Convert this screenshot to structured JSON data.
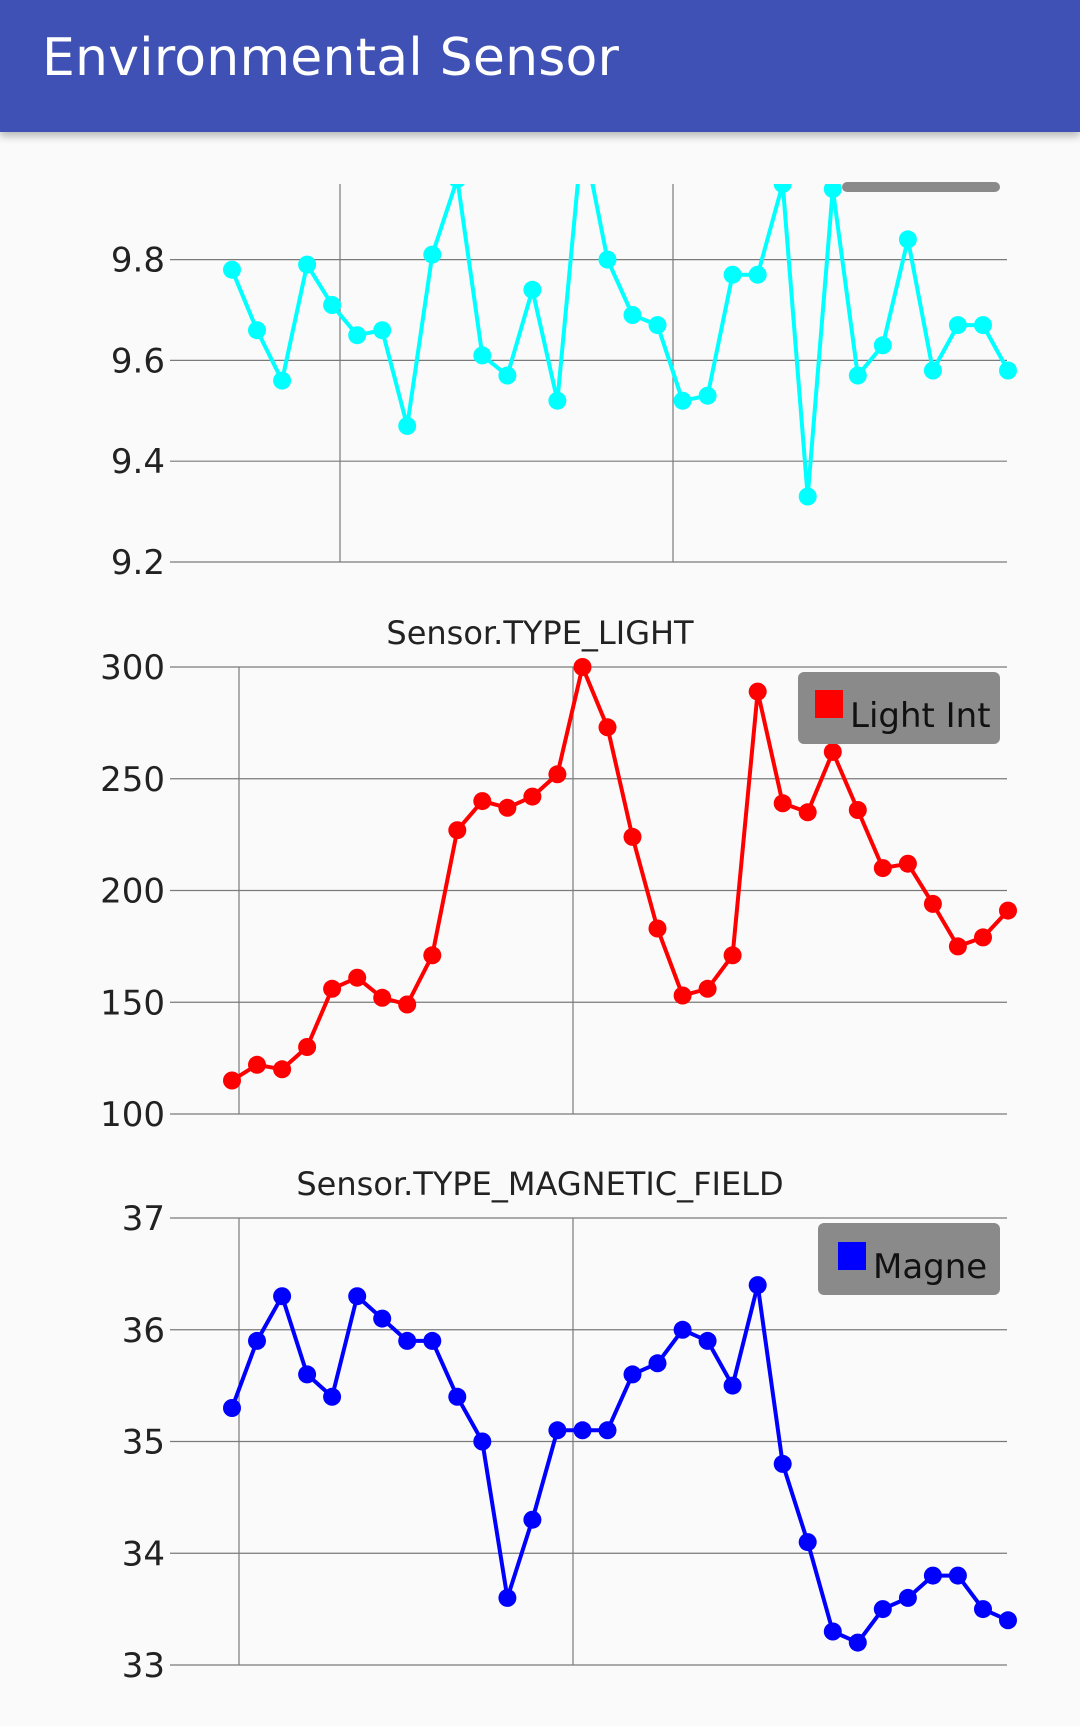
{
  "app": {
    "title": "Environmental Sensor"
  },
  "chart_data": [
    {
      "type": "line",
      "title": "",
      "ylim": [
        9.2,
        9.95
      ],
      "yticks": [
        "9.2",
        "9.4",
        "9.6",
        "9.8"
      ],
      "color": "#00ffff",
      "legend_visible": false,
      "series": [
        {
          "values": [
            9.78,
            9.66,
            9.56,
            9.79,
            9.71,
            9.65,
            9.66,
            9.47,
            9.81,
            9.96,
            9.61,
            9.57,
            9.74,
            9.52,
            10.05,
            9.8,
            9.69,
            9.67,
            9.52,
            9.53,
            9.77,
            9.77,
            9.95,
            9.33,
            9.94,
            9.57,
            9.63,
            9.84,
            9.58,
            9.67,
            9.67,
            9.58
          ]
        }
      ]
    },
    {
      "type": "line",
      "title": "Sensor.TYPE_LIGHT",
      "ylim": [
        100,
        300
      ],
      "yticks": [
        "100",
        "150",
        "200",
        "250",
        "300"
      ],
      "color": "#ff0000",
      "legend": "Light Int",
      "series": [
        {
          "name": "Light Int",
          "values": [
            115,
            122,
            120,
            130,
            156,
            161,
            152,
            149,
            171,
            227,
            240,
            237,
            242,
            252,
            300,
            273,
            224,
            183,
            153,
            156,
            171,
            289,
            239,
            235,
            262,
            236,
            210,
            212,
            194,
            175,
            179,
            191
          ]
        }
      ]
    },
    {
      "type": "line",
      "title": "Sensor.TYPE_MAGNETIC_FIELD",
      "ylim": [
        33,
        37
      ],
      "yticks": [
        "33",
        "34",
        "35",
        "36",
        "37"
      ],
      "color": "#0000ff",
      "legend": "Magne",
      "series": [
        {
          "name": "Magne",
          "values": [
            35.3,
            35.9,
            36.3,
            35.6,
            35.4,
            36.3,
            36.1,
            35.9,
            35.9,
            35.4,
            35.0,
            33.6,
            34.3,
            35.1,
            35.1,
            35.1,
            35.6,
            35.7,
            36.0,
            35.9,
            35.5,
            36.4,
            34.8,
            34.1,
            33.3,
            33.2,
            33.5,
            33.6,
            33.8,
            33.8,
            33.5,
            33.4
          ]
        }
      ]
    }
  ]
}
